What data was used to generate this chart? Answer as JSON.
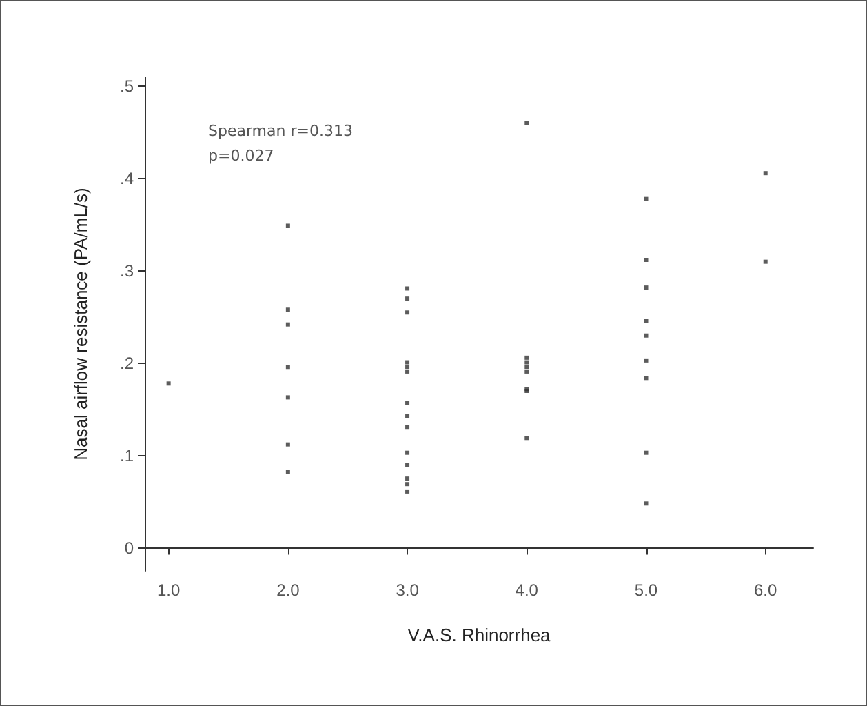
{
  "chart_data": {
    "type": "scatter",
    "xlabel": "V.A.S. Rhinorrhea",
    "ylabel": "Nasal airflow resistance (PA/mL/s)",
    "annotations": [
      "Spearman r=0.313",
      "p=0.027"
    ],
    "series": [
      {
        "color": "#333333",
        "x": [
          1,
          2,
          2,
          2,
          2,
          2,
          2,
          2,
          3,
          3,
          3,
          3,
          3,
          3,
          3,
          3,
          3,
          3,
          3,
          3,
          3,
          3,
          4,
          4,
          4,
          4,
          4,
          4,
          4,
          4,
          5,
          5,
          5,
          5,
          5,
          5,
          5,
          5,
          5,
          6,
          6
        ],
        "values": [
          0.178,
          0.349,
          0.258,
          0.242,
          0.196,
          0.163,
          0.112,
          0.082,
          0.281,
          0.27,
          0.255,
          0.201,
          0.196,
          0.191,
          0.157,
          0.143,
          0.131,
          0.103,
          0.09,
          0.075,
          0.069,
          0.061,
          0.46,
          0.206,
          0.201,
          0.196,
          0.191,
          0.172,
          0.17,
          0.119,
          0.378,
          0.312,
          0.282,
          0.246,
          0.23,
          0.203,
          0.184,
          0.103,
          0.048,
          0.406,
          0.31
        ]
      }
    ],
    "xlim": [
      0.8,
      6.4
    ],
    "xticks": [
      {
        "value": 1,
        "label": "1.0"
      },
      {
        "value": 2,
        "label": "2.0"
      },
      {
        "value": 3,
        "label": "3.0"
      },
      {
        "value": 4,
        "label": "4.0"
      },
      {
        "value": 5,
        "label": "5.0"
      },
      {
        "value": 6,
        "label": "6.0"
      }
    ],
    "ylim": [
      -0.025,
      0.51
    ],
    "yticks": [
      {
        "value": 0,
        "label": "0"
      },
      {
        "value": 0.1,
        "label": ".1"
      },
      {
        "value": 0.2,
        "label": ".2"
      },
      {
        "value": 0.3,
        "label": ".3"
      },
      {
        "value": 0.4,
        "label": ".4"
      },
      {
        "value": 0.5,
        "label": ".5"
      }
    ],
    "marker": "square"
  }
}
